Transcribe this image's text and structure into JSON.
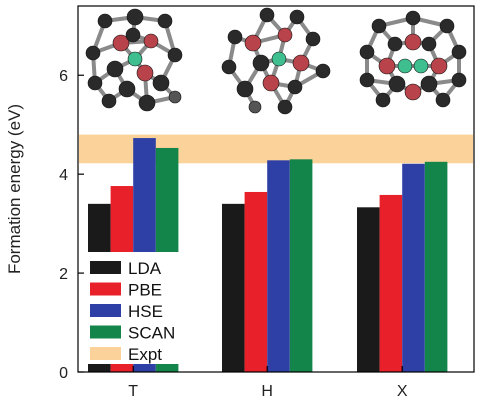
{
  "chart_data": {
    "type": "bar",
    "ylabel": "Formation energy (eV)",
    "xlabel": "",
    "ylim": [
      0,
      7.4
    ],
    "yticks": [
      0,
      2,
      4,
      6
    ],
    "categories": [
      "T",
      "H",
      "X"
    ],
    "series": [
      {
        "name": "LDA",
        "color": "#1a1a1a",
        "values": [
          3.4,
          3.4,
          3.33
        ]
      },
      {
        "name": "PBE",
        "color": "#e8202a",
        "values": [
          3.76,
          3.64,
          3.58
        ]
      },
      {
        "name": "HSE",
        "color": "#2e3fa6",
        "values": [
          4.73,
          4.28,
          4.21
        ]
      },
      {
        "name": "SCAN",
        "color": "#13844a",
        "values": [
          4.53,
          4.3,
          4.25
        ]
      }
    ],
    "expt_band": {
      "name": "Expt",
      "color": "#fbd39a",
      "low": 4.22,
      "high": 4.8
    },
    "legend_position": "lower-left",
    "insets": [
      {
        "category": "T",
        "description": "T interstitial cluster structure"
      },
      {
        "category": "H",
        "description": "H interstitial cluster structure"
      },
      {
        "category": "X",
        "description": "X interstitial cluster structure"
      }
    ]
  }
}
